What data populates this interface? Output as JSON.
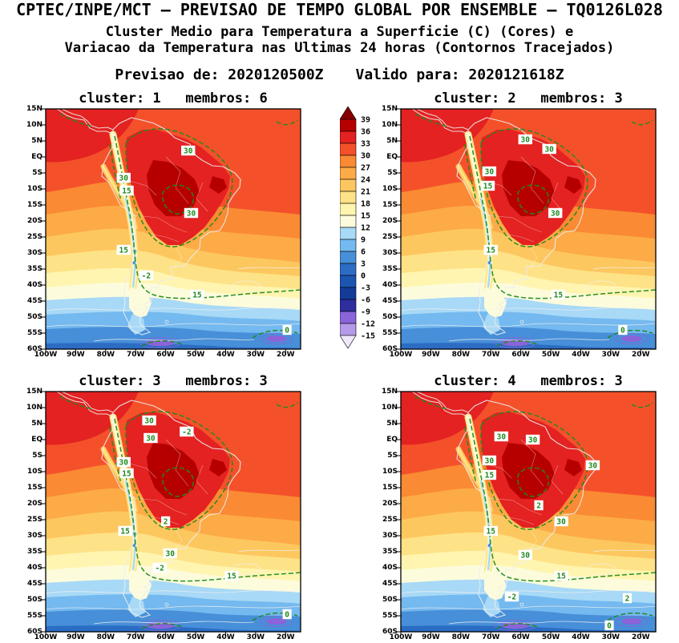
{
  "header": {
    "title": "CPTEC/INPE/MCT — PREVISAO DE TEMPO GLOBAL POR ENSEMBLE — TQ0126L028",
    "subtitle_line1": "Cluster Medio para Temperatura a Superficie (C) (Cores) e",
    "subtitle_line2": "Variacao da Temperatura nas Ultimas 24 horas (Contornos Tracejados)",
    "issued_label": "Previsao de:",
    "issued_value": "2020120500Z",
    "valid_label": "Valido para:",
    "valid_value": "2020121618Z"
  },
  "axes": {
    "lat_ticks": [
      "15N",
      "10N",
      "5N",
      "EQ",
      "5S",
      "10S",
      "15S",
      "20S",
      "25S",
      "30S",
      "35S",
      "40S",
      "45S",
      "50S",
      "55S",
      "60S"
    ],
    "lon_ticks": [
      "100W",
      "90W",
      "80W",
      "70W",
      "60W",
      "50W",
      "40W",
      "30W",
      "20W"
    ]
  },
  "chart_data": {
    "type": "heatmap",
    "subtype": "ensemble-cluster-filled-contour-maps-2x2",
    "fill_variable": "Cluster Medio para Temperatura a Superficie (C)",
    "contour_variable": "Variacao da Temperatura nas Ultimas 24 horas",
    "region": {
      "lon_min": -100,
      "lon_max": -15,
      "lat_min": -60,
      "lat_max": 15
    },
    "colorbar_levels": [
      39,
      36,
      33,
      30,
      27,
      24,
      21,
      18,
      15,
      12,
      9,
      6,
      3,
      0,
      -3,
      -6,
      -9,
      -12,
      -15
    ],
    "colorbar_colors": [
      "#870000",
      "#b60000",
      "#e32221",
      "#f4512b",
      "#fa8a33",
      "#fcab47",
      "#fdc75f",
      "#fee287",
      "#fff5b0",
      "#fcfcdc",
      "#a8d9f7",
      "#74b9ef",
      "#478fd8",
      "#2b6cc4",
      "#1b55b0",
      "#123c98",
      "#2e2e9e",
      "#8a64d8",
      "#b49ae8",
      "#efe8fb"
    ],
    "contour_label_color": "#1e8a1e",
    "panels": [
      {
        "title": "cluster: 1   membros: 6",
        "cluster": 1,
        "membros": 6,
        "contour_labels": [
          {
            "v": "30",
            "lon": -52.5,
            "lat": 2
          },
          {
            "v": "30",
            "lon": -74,
            "lat": -6.5
          },
          {
            "v": "15",
            "lon": -73,
            "lat": -10.5
          },
          {
            "v": "30",
            "lon": -51.5,
            "lat": -17.5
          },
          {
            "v": "15",
            "lon": -74,
            "lat": -29
          },
          {
            "v": "-2",
            "lon": -66.5,
            "lat": -37
          },
          {
            "v": "15",
            "lon": -49.5,
            "lat": -43
          },
          {
            "v": "0",
            "lon": -19.5,
            "lat": -54
          }
        ]
      },
      {
        "title": "cluster: 2   membros: 3",
        "cluster": 2,
        "membros": 3,
        "contour_labels": [
          {
            "v": "30",
            "lon": -58.5,
            "lat": 5.5
          },
          {
            "v": "30",
            "lon": -50.5,
            "lat": 2.5
          },
          {
            "v": "30",
            "lon": -70.5,
            "lat": -4.5
          },
          {
            "v": "15",
            "lon": -71,
            "lat": -9
          },
          {
            "v": "30",
            "lon": -48.5,
            "lat": -17.5
          },
          {
            "v": "15",
            "lon": -70,
            "lat": -29
          },
          {
            "v": "15",
            "lon": -47.5,
            "lat": -43
          },
          {
            "v": "0",
            "lon": -26,
            "lat": -54
          }
        ]
      },
      {
        "title": "cluster: 3   membros: 3",
        "cluster": 3,
        "membros": 3,
        "contour_labels": [
          {
            "v": "30",
            "lon": -65.5,
            "lat": 6
          },
          {
            "v": "-2",
            "lon": -53,
            "lat": 2.5
          },
          {
            "v": "30",
            "lon": -65,
            "lat": 0.5
          },
          {
            "v": "30",
            "lon": -74,
            "lat": -7
          },
          {
            "v": "15",
            "lon": -73,
            "lat": -10.5
          },
          {
            "v": "2",
            "lon": -60,
            "lat": -25.5
          },
          {
            "v": "15",
            "lon": -73.5,
            "lat": -28.5
          },
          {
            "v": "30",
            "lon": -58.5,
            "lat": -35.5
          },
          {
            "v": "-2",
            "lon": -62,
            "lat": -40
          },
          {
            "v": "15",
            "lon": -38,
            "lat": -42.5
          },
          {
            "v": "0",
            "lon": -19.5,
            "lat": -54.5
          }
        ]
      },
      {
        "title": "cluster: 4   membros: 3",
        "cluster": 4,
        "membros": 3,
        "contour_labels": [
          {
            "v": "30",
            "lon": -66.5,
            "lat": 1
          },
          {
            "v": "30",
            "lon": -56,
            "lat": 0
          },
          {
            "v": "30",
            "lon": -70.5,
            "lat": -6.5
          },
          {
            "v": "15",
            "lon": -70.5,
            "lat": -11
          },
          {
            "v": "30",
            "lon": -36,
            "lat": -8
          },
          {
            "v": "2",
            "lon": -54,
            "lat": -20.5
          },
          {
            "v": "30",
            "lon": -46.5,
            "lat": -25.5
          },
          {
            "v": "15",
            "lon": -70,
            "lat": -28.5
          },
          {
            "v": "30",
            "lon": -58.5,
            "lat": -36
          },
          {
            "v": "15",
            "lon": -46.5,
            "lat": -42.5
          },
          {
            "v": "-2",
            "lon": -63,
            "lat": -49
          },
          {
            "v": "2",
            "lon": -24.5,
            "lat": -49.5
          },
          {
            "v": "0",
            "lon": -30.5,
            "lat": -58
          }
        ]
      }
    ]
  }
}
